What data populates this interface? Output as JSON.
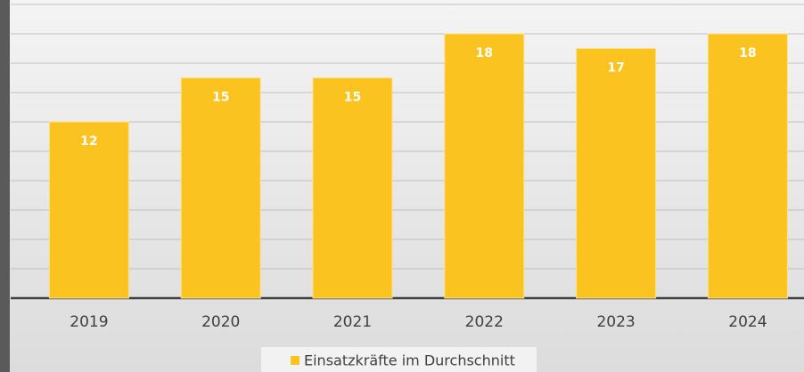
{
  "chart_data": {
    "type": "bar",
    "categories": [
      "2019",
      "2020",
      "2021",
      "2022",
      "2023",
      "2024"
    ],
    "series": [
      {
        "name": "Einsatzkräfte im Durchschnitt",
        "color": "#fac31f",
        "values": [
          12,
          15,
          15,
          18,
          17,
          18
        ]
      }
    ],
    "ylim": [
      0,
      20
    ],
    "yticks": [
      0,
      2,
      4,
      6,
      8,
      10,
      12,
      14,
      16,
      18,
      20
    ],
    "grid": true,
    "legend": "bottom"
  }
}
